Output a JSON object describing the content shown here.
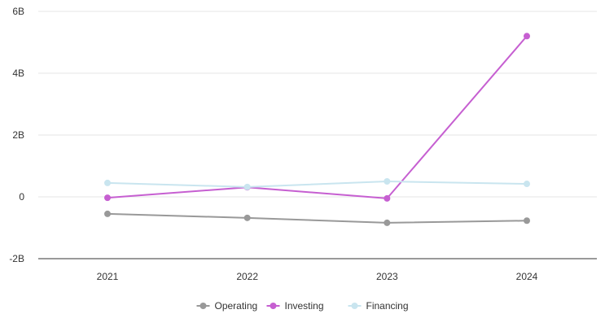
{
  "chart_data": {
    "type": "line",
    "title": "",
    "xlabel": "",
    "ylabel": "",
    "categories": [
      "2021",
      "2022",
      "2023",
      "2024"
    ],
    "ylim": [
      -2,
      6
    ],
    "y_ticks": [
      {
        "value": -2,
        "label": "-2B"
      },
      {
        "value": 0,
        "label": "0"
      },
      {
        "value": 2,
        "label": "2B"
      },
      {
        "value": 4,
        "label": "4B"
      },
      {
        "value": 6,
        "label": "6B"
      }
    ],
    "grid": true,
    "legend_position": "bottom",
    "series": [
      {
        "name": "Operating",
        "color": "#999999",
        "values": [
          -0.55,
          -0.68,
          -0.84,
          -0.77
        ]
      },
      {
        "name": "Investing",
        "color": "#c65fd1",
        "values": [
          -0.03,
          0.31,
          -0.05,
          5.2
        ]
      },
      {
        "name": "Financing",
        "color": "#c9e5ef",
        "values": [
          0.45,
          0.32,
          0.5,
          0.42
        ]
      }
    ]
  }
}
